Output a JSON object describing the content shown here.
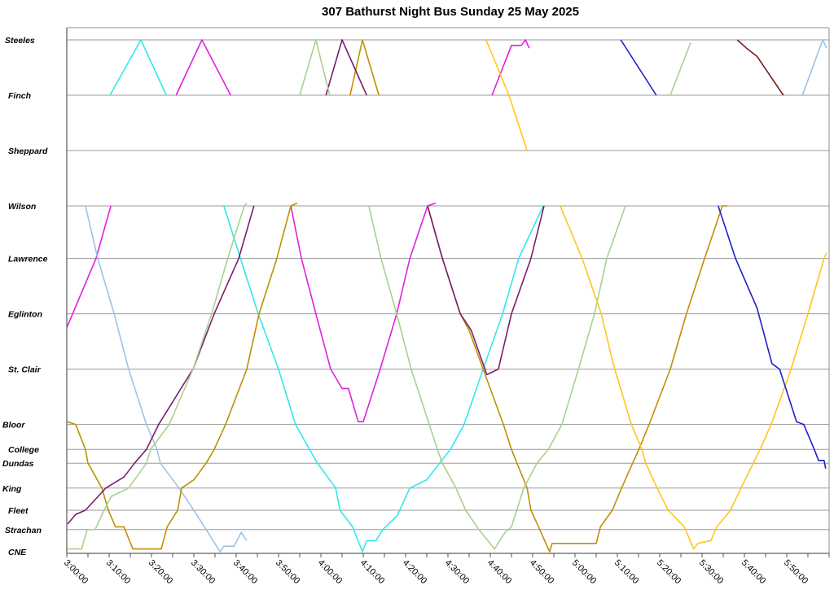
{
  "chart_data": {
    "type": "line",
    "title": "307 Bathurst Night Bus Sunday 25 May 2025",
    "xlabel": "",
    "ylabel": "",
    "x_units": "minutes since midnight",
    "xlim": [
      180,
      360
    ],
    "x_tick_labels": [
      "3:00:00",
      "3:10:00",
      "3:20:00",
      "3:30:00",
      "3:40:00",
      "3:50:00",
      "4:00:00",
      "4:10:00",
      "4:20:00",
      "4:30:00",
      "4:40:00",
      "4:50:00",
      "5:00:00",
      "5:10:00",
      "5:20:00",
      "5:30:00",
      "5:40:00",
      "5:50:00"
    ],
    "x_tick_values": [
      180,
      190,
      200,
      210,
      220,
      230,
      240,
      250,
      260,
      270,
      280,
      290,
      300,
      310,
      320,
      330,
      340,
      350
    ],
    "y_units": "approx. km from CNE",
    "ylim": [
      0,
      18.5
    ],
    "stations": [
      {
        "name": "Steeles",
        "d": 18.5
      },
      {
        "name": "Finch",
        "d": 16.5
      },
      {
        "name": "Sheppard",
        "d": 14.5
      },
      {
        "name": "Wilson",
        "d": 12.5
      },
      {
        "name": "Lawrence",
        "d": 10.6
      },
      {
        "name": "Eglinton",
        "d": 8.6
      },
      {
        "name": "St. Clair",
        "d": 6.6
      },
      {
        "name": "Bloor",
        "d": 4.6
      },
      {
        "name": "College",
        "d": 3.7
      },
      {
        "name": "Dundas",
        "d": 3.2
      },
      {
        "name": "King",
        "d": 2.3
      },
      {
        "name": "Fleet",
        "d": 1.5
      },
      {
        "name": "Strachan",
        "d": 0.8
      },
      {
        "name": "CNE",
        "d": 0
      }
    ],
    "grid": "horizontal at stations",
    "legend": "none",
    "series": [
      {
        "name": "magenta",
        "color": "#E020E0",
        "segments": [
          [
            [
              180,
              8.1
            ],
            [
              186.9,
              10.6
            ],
            [
              190.4,
              12.5
            ]
          ],
          [
            [
              205.8,
              16.5
            ],
            [
              211.9,
              18.5
            ],
            [
              218.7,
              16.5
            ]
          ],
          [
            [
              232.9,
              12.5
            ],
            [
              235.4,
              10.6
            ],
            [
              238.8,
              8.6
            ],
            [
              242.3,
              6.6
            ],
            [
              245,
              5.9
            ],
            [
              246.5,
              5.9
            ],
            [
              248.8,
              4.7
            ],
            [
              250,
              4.7
            ],
            [
              254,
              6.6
            ],
            [
              257.9,
              8.6
            ],
            [
              261,
              10.6
            ],
            [
              265.2,
              12.5
            ],
            [
              267.1,
              12.6
            ]
          ],
          [
            [
              280.4,
              16.5
            ],
            [
              285,
              18.3
            ],
            [
              287.3,
              18.3
            ],
            [
              288.3,
              18.5
            ],
            [
              289.2,
              18.2
            ]
          ]
        ]
      },
      {
        "name": "cyan",
        "color": "#33E6EE",
        "segments": [
          [
            [
              190.2,
              16.5
            ],
            [
              197.5,
              18.5
            ],
            [
              203.5,
              16.5
            ]
          ],
          [
            [
              217.1,
              12.5
            ],
            [
              221,
              10.6
            ],
            [
              225.2,
              8.6
            ],
            [
              230,
              6.6
            ],
            [
              234,
              4.6
            ],
            [
              237.3,
              3.7
            ],
            [
              239.2,
              3.2
            ],
            [
              243.5,
              2.3
            ],
            [
              244.5,
              1.5
            ],
            [
              247.5,
              0.9
            ],
            [
              249.8,
              0
            ],
            [
              250.8,
              0.4
            ],
            [
              253,
              0.4
            ],
            [
              254.6,
              0.8
            ],
            [
              258,
              1.3
            ],
            [
              261,
              2.3
            ],
            [
              265,
              2.6
            ],
            [
              268,
              3.2
            ],
            [
              270.6,
              3.7
            ],
            [
              273.8,
              4.6
            ],
            [
              278.3,
              6.6
            ],
            [
              282.9,
              8.6
            ],
            [
              286.7,
              10.6
            ],
            [
              292.5,
              12.5
            ]
          ]
        ]
      },
      {
        "name": "light-blue",
        "color": "#9DC3E6",
        "segments": [
          [
            [
              184.4,
              12.5
            ],
            [
              187.3,
              10.6
            ],
            [
              191.2,
              8.6
            ],
            [
              194.6,
              6.6
            ],
            [
              198.8,
              4.6
            ],
            [
              201.3,
              3.7
            ],
            [
              202.1,
              3.2
            ],
            [
              206.5,
              2.3
            ],
            [
              210,
              1.5
            ],
            [
              212.9,
              0.8
            ],
            [
              216.2,
              0
            ],
            [
              217.1,
              0.2
            ],
            [
              219.5,
              0.2
            ],
            [
              221.2,
              0.7
            ],
            [
              222.5,
              0.4
            ]
          ],
          [
            [
              353.7,
              16.5
            ],
            [
              358.5,
              18.5
            ],
            [
              359.4,
              18.2
            ]
          ]
        ]
      },
      {
        "name": "dark-gold",
        "color": "#BF9000",
        "segments": [
          [
            [
              180,
              4.7
            ],
            [
              182.1,
              4.6
            ],
            [
              184.4,
              3.7
            ],
            [
              185,
              3.2
            ],
            [
              188.3,
              2.3
            ],
            [
              189.8,
              1.5
            ],
            [
              191.5,
              0.9
            ],
            [
              193.5,
              0.9
            ],
            [
              195.6,
              0.1
            ],
            [
              202.3,
              0.1
            ],
            [
              203.7,
              0.9
            ],
            [
              206.2,
              1.5
            ],
            [
              207.1,
              2.3
            ],
            [
              210,
              2.6
            ],
            [
              212.9,
              3.2
            ],
            [
              214.8,
              3.7
            ],
            [
              217.5,
              4.6
            ],
            [
              222.5,
              6.6
            ],
            [
              225.4,
              8.6
            ],
            [
              229.6,
              10.6
            ],
            [
              232.9,
              12.5
            ],
            [
              234.4,
              12.6
            ]
          ],
          [
            [
              246.9,
              16.5
            ],
            [
              249.8,
              18.5
            ],
            [
              253.7,
              16.5
            ]
          ],
          [
            [
              265.2,
              12.5
            ],
            [
              268.7,
              10.6
            ],
            [
              272.9,
              8.6
            ],
            [
              275,
              8.0
            ],
            [
              278.3,
              6.6
            ],
            [
              283.1,
              4.6
            ],
            [
              285,
              3.7
            ],
            [
              286.3,
              3.2
            ],
            [
              288.7,
              2.3
            ],
            [
              289.6,
              1.5
            ],
            [
              291.7,
              0.8
            ],
            [
              294,
              0
            ],
            [
              294.6,
              0.3
            ],
            [
              305,
              0.3
            ],
            [
              306,
              0.9
            ],
            [
              308.8,
              1.5
            ],
            [
              311,
              2.3
            ],
            [
              313.3,
              3.1
            ],
            [
              314.8,
              3.6
            ],
            [
              317.5,
              4.6
            ],
            [
              322.5,
              6.6
            ],
            [
              326.3,
              8.6
            ],
            [
              330.6,
              10.6
            ],
            [
              334.8,
              12.5
            ],
            [
              336,
              12.5
            ]
          ]
        ]
      },
      {
        "name": "purple",
        "color": "#7B1E6E",
        "segments": [
          [
            [
              180.2,
              1.0
            ],
            [
              182.1,
              1.35
            ],
            [
              184.4,
              1.5
            ],
            [
              189.2,
              2.3
            ],
            [
              193.5,
              2.7
            ],
            [
              196,
              3.2
            ],
            [
              198.8,
              3.7
            ],
            [
              201.7,
              4.6
            ],
            [
              209.8,
              6.6
            ],
            [
              214.8,
              8.6
            ],
            [
              220.6,
              10.6
            ],
            [
              224.2,
              12.5
            ]
          ],
          [
            [
              241.2,
              16.5
            ],
            [
              245,
              18.5
            ],
            [
              250.8,
              16.5
            ]
          ],
          [
            [
              265.2,
              12.5
            ],
            [
              268.7,
              10.6
            ],
            [
              272.9,
              8.6
            ],
            [
              275.5,
              8.0
            ],
            [
              279.2,
              6.4
            ],
            [
              281.9,
              6.6
            ],
            [
              285,
              8.6
            ],
            [
              289.6,
              10.6
            ],
            [
              292.7,
              12.5
            ]
          ]
        ]
      },
      {
        "name": "light-green",
        "color": "#A9D18E",
        "segments": [
          [
            [
              180.2,
              0.1
            ],
            [
              183.5,
              0.1
            ],
            [
              184.8,
              0.8
            ],
            [
              186.7,
              0.8
            ],
            [
              188.8,
              1.5
            ],
            [
              190.5,
              2.0
            ],
            [
              194.6,
              2.3
            ],
            [
              198.8,
              3.2
            ],
            [
              199.8,
              3.7
            ],
            [
              204.2,
              4.6
            ],
            [
              209.8,
              6.6
            ],
            [
              214.2,
              8.6
            ],
            [
              218,
              10.6
            ],
            [
              221.9,
              12.5
            ],
            [
              222.5,
              12.6
            ]
          ],
          [
            [
              235,
              16.5
            ],
            [
              238.8,
              18.5
            ],
            [
              242.1,
              16.5
            ]
          ],
          [
            [
              251.3,
              12.5
            ],
            [
              254.2,
              10.6
            ],
            [
              257.9,
              8.6
            ],
            [
              261.3,
              6.6
            ],
            [
              265.6,
              4.6
            ],
            [
              267.5,
              3.7
            ],
            [
              268.7,
              3.2
            ],
            [
              271.9,
              2.3
            ],
            [
              274.2,
              1.5
            ],
            [
              277.3,
              0.8
            ],
            [
              281,
              0.1
            ],
            [
              283.5,
              0.7
            ],
            [
              285,
              0.9
            ],
            [
              287.9,
              2.3
            ],
            [
              291,
              3.2
            ],
            [
              293.7,
              3.7
            ],
            [
              296.9,
              4.6
            ],
            [
              300.8,
              6.6
            ],
            [
              304.6,
              8.6
            ],
            [
              307.5,
              10.6
            ],
            [
              311.9,
              12.5
            ]
          ],
          [
            [
              322.5,
              16.5
            ],
            [
              327.3,
              18.4
            ]
          ]
        ]
      },
      {
        "name": "yellow",
        "color": "#FFC61A",
        "segments": [
          [
            [
              279,
              18.5
            ],
            [
              284.4,
              16.5
            ],
            [
              288.7,
              14.5
            ]
          ],
          [
            [
              296.5,
              12.5
            ],
            [
              301.7,
              10.6
            ],
            [
              306.2,
              8.6
            ],
            [
              309,
              6.8
            ],
            [
              313.3,
              4.6
            ],
            [
              315.8,
              3.7
            ],
            [
              316.7,
              3.2
            ],
            [
              319.4,
              2.3
            ],
            [
              322,
              1.5
            ],
            [
              325.8,
              0.9
            ],
            [
              328,
              0.1
            ],
            [
              329,
              0.3
            ],
            [
              332.1,
              0.4
            ],
            [
              333.5,
              0.9
            ],
            [
              336.7,
              1.5
            ],
            [
              339.2,
              2.3
            ],
            [
              342.1,
              3.2
            ],
            [
              343.7,
              3.7
            ],
            [
              346.3,
              4.6
            ],
            [
              350.8,
              6.5
            ],
            [
              355,
              8.6
            ],
            [
              358.8,
              10.6
            ],
            [
              359.4,
              10.8
            ]
          ]
        ]
      },
      {
        "name": "blue",
        "color": "#1F1FCC",
        "segments": [
          [
            [
              310.8,
              18.5
            ],
            [
              319.2,
              16.5
            ]
          ],
          [
            [
              333.8,
              12.5
            ],
            [
              337.9,
              10.6
            ],
            [
              343,
              8.8
            ],
            [
              346.5,
              6.8
            ],
            [
              348.3,
              6.6
            ],
            [
              352.3,
              4.7
            ],
            [
              354,
              4.6
            ],
            [
              356.5,
              3.7
            ],
            [
              357.5,
              3.3
            ],
            [
              358.8,
              3.3
            ],
            [
              359.2,
              3.0
            ]
          ]
        ]
      },
      {
        "name": "dark-red",
        "color": "#7F1A1A",
        "segments": [
          [
            [
              338.3,
              18.5
            ],
            [
              340.5,
              18.2
            ],
            [
              343,
              17.9
            ],
            [
              349.2,
              16.5
            ]
          ]
        ]
      }
    ]
  }
}
